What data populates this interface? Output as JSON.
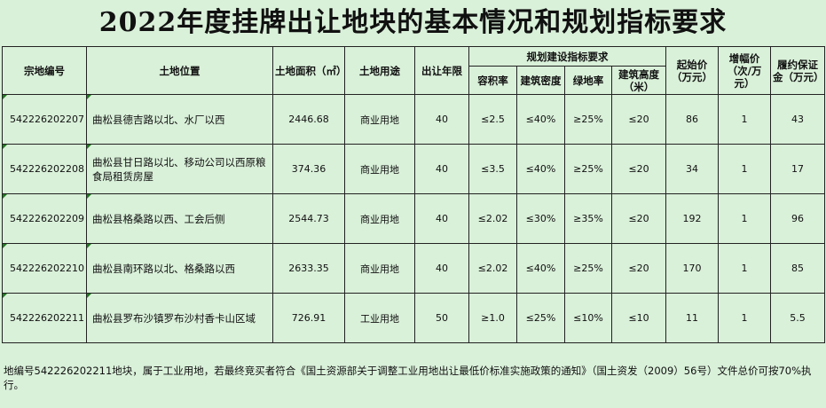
{
  "title": "2022年度挂牌出让地块的基本情况和规划指标要求",
  "headers": {
    "id": "宗地编号",
    "location": "土地位置",
    "area": "土地面积（㎡）",
    "use": "土地用途",
    "term": "出让年限",
    "plan_group": "规划建设指标要求",
    "far": "容积率",
    "density": "建筑密度",
    "green": "绿地率",
    "height": "建筑高度（米）",
    "start_price": "起始价（万元）",
    "increment": "增幅价（次/万元）",
    "deposit": "履约保证金（万元）"
  },
  "rows": [
    {
      "id": "542226202207",
      "location": "曲松县德吉路以北、水厂以西",
      "area": "2446.68",
      "use": "商业用地",
      "term": "40",
      "far": "≤2.5",
      "density": "≤40%",
      "green": "≥25%",
      "height": "≤20",
      "start_price": "86",
      "increment": "1",
      "deposit": "43"
    },
    {
      "id": "542226202208",
      "location": "曲松县甘日路以北、移动公司以西原粮食局租赁房屋",
      "area": "374.36",
      "use": "商业用地",
      "term": "40",
      "far": "≤3.5",
      "density": "≤40%",
      "green": "≥25%",
      "height": "≤20",
      "start_price": "34",
      "increment": "1",
      "deposit": "17"
    },
    {
      "id": "542226202209",
      "location": "曲松县格桑路以西、工会后侧",
      "area": "2544.73",
      "use": "商业用地",
      "term": "40",
      "far": "≤2.02",
      "density": "≤30%",
      "green": "≥35%",
      "height": "≤20",
      "start_price": "192",
      "increment": "1",
      "deposit": "96"
    },
    {
      "id": "542226202210",
      "location": "曲松县南环路以北、格桑路以西",
      "area": "2633.35",
      "use": "商业用地",
      "term": "40",
      "far": "≤2.02",
      "density": "≤40%",
      "green": "≥25%",
      "height": "≤20",
      "start_price": "170",
      "increment": "1",
      "deposit": "85"
    },
    {
      "id": "542226202211",
      "location": "曲松县罗布沙镇罗布沙村香卡山区域",
      "area": "726.91",
      "use": "工业用地",
      "term": "50",
      "far": "≥1.0",
      "density": "≤25%",
      "green": "≤10%",
      "height": "≤10",
      "start_price": "11",
      "increment": "1",
      "deposit": "5.5"
    }
  ],
  "note": "地编号542226202211地块，属于工业用地，若最终竞买者符合《国土资源部关于调整工业用地出让最低价标准实施政策的通知》（国土资发（2009）56号）文件总价可按70%执行。",
  "colors": {
    "background": "#d9f0d9",
    "border": "#222222",
    "corner_mark": "#1e7a1e"
  }
}
